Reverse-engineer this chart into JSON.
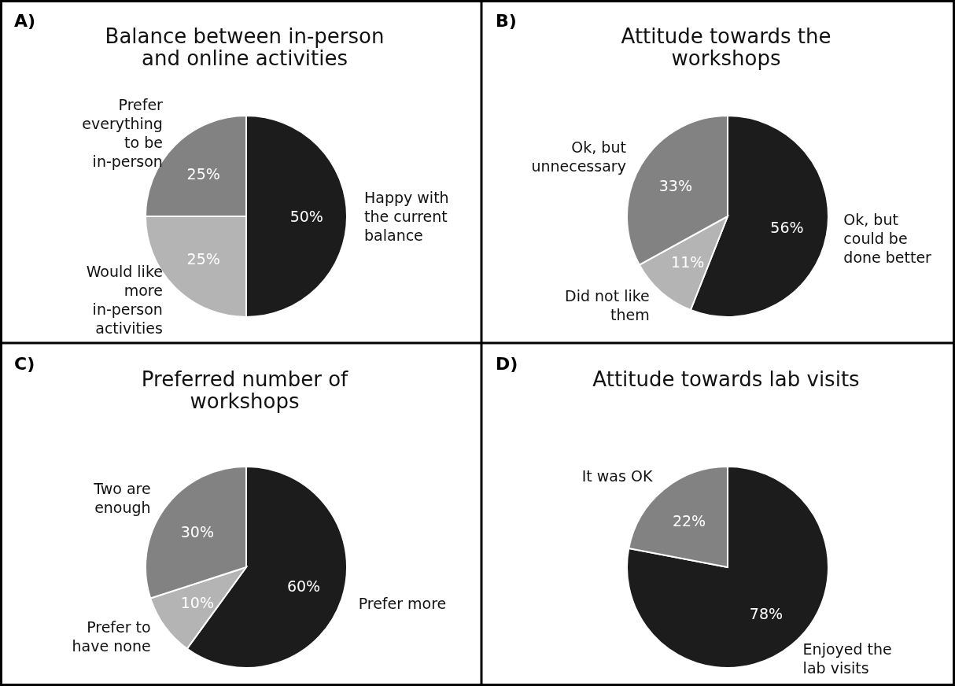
{
  "chart_data": [
    {
      "type": "pie",
      "title": "Balance between in-person and online activities",
      "annotations": [
        "A)"
      ],
      "categories": [
        "Happy with the current balance",
        "Would like more in-person activities",
        "Prefer everything to be in-person"
      ],
      "values": [
        50,
        25,
        25
      ],
      "value_labels": [
        "50%",
        "25%",
        "25%"
      ],
      "colors": [
        "#1c1c1c",
        "#b4b4b4",
        "#828282"
      ]
    },
    {
      "type": "pie",
      "title": "Attitude towards the workshops",
      "annotations": [
        "B)"
      ],
      "categories": [
        "Ok, but could be done better",
        "Did not like them",
        "Ok, but unnecessary"
      ],
      "values": [
        56,
        11,
        33
      ],
      "value_labels": [
        "56%",
        "11%",
        "33%"
      ],
      "colors": [
        "#1c1c1c",
        "#b4b4b4",
        "#828282"
      ]
    },
    {
      "type": "pie",
      "title": "Preferred number of workshops",
      "annotations": [
        "C)"
      ],
      "categories": [
        "Prefer more",
        "Prefer to have none",
        "Two are enough"
      ],
      "values": [
        60,
        10,
        30
      ],
      "value_labels": [
        "60%",
        "10%",
        "30%"
      ],
      "colors": [
        "#1c1c1c",
        "#b4b4b4",
        "#828282"
      ]
    },
    {
      "type": "pie",
      "title": "Attitude towards lab visits",
      "annotations": [
        "D)"
      ],
      "categories": [
        "Enjoyed the lab visits",
        "It was OK"
      ],
      "values": [
        78,
        22
      ],
      "value_labels": [
        "78%",
        "22%"
      ],
      "colors": [
        "#1c1c1c",
        "#828282"
      ]
    }
  ]
}
